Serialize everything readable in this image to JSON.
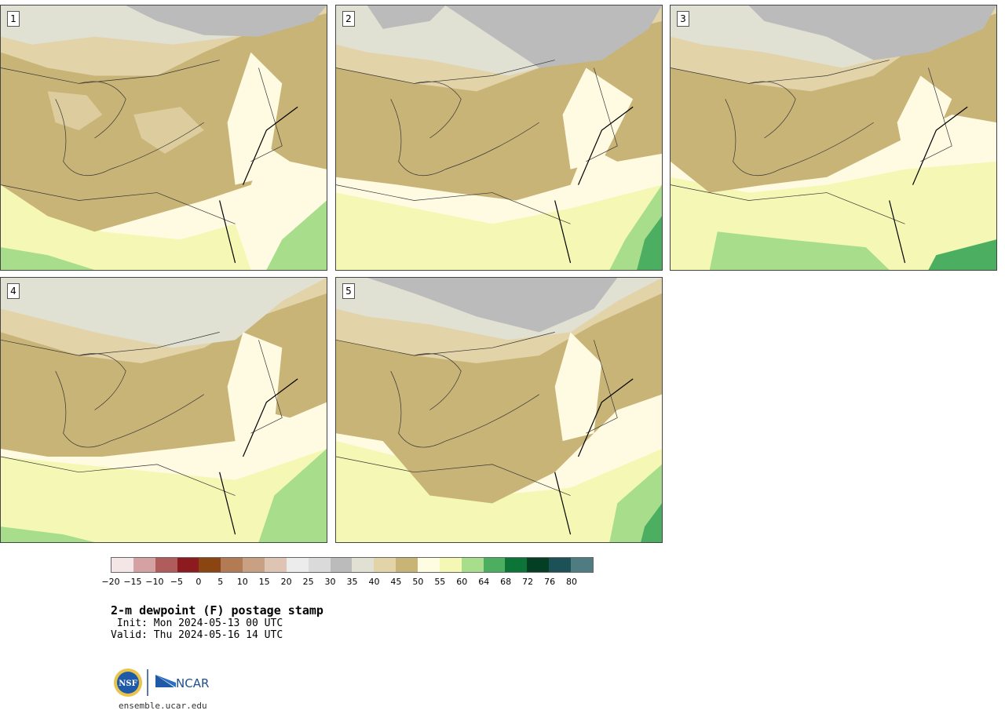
{
  "panels": [
    {
      "label": "1"
    },
    {
      "label": "2"
    },
    {
      "label": "3"
    },
    {
      "label": "4"
    },
    {
      "label": "5"
    }
  ],
  "legend": {
    "colors": [
      "#f4e6e6",
      "#d4a2a2",
      "#b05c5c",
      "#8c1a1f",
      "#8a4512",
      "#b27b54",
      "#c9a083",
      "#dec4b2",
      "#ececec",
      "#dadada",
      "#bbbbbb",
      "#e0e0d3",
      "#e2d3a8",
      "#c9b477",
      "#fefde1",
      "#f4f8b4",
      "#a8dd8c",
      "#4cae60",
      "#0c7437",
      "#053f23",
      "#1d5158",
      "#4f7c80"
    ],
    "ticks": [
      "−20",
      "−15",
      "−10",
      "−5",
      "0",
      "5",
      "10",
      "15",
      "20",
      "25",
      "30",
      "35",
      "40",
      "45",
      "50",
      "55",
      "60",
      "64",
      "68",
      "72",
      "76",
      "80"
    ]
  },
  "title": "2-m dewpoint (F) postage stamp",
  "init": " Init: Mon 2024-05-13 00 UTC",
  "valid": "Valid: Thu 2024-05-16 14 UTC",
  "logos": {
    "left": "NSF",
    "right": "NCAR"
  },
  "site": "ensemble.ucar.edu"
}
